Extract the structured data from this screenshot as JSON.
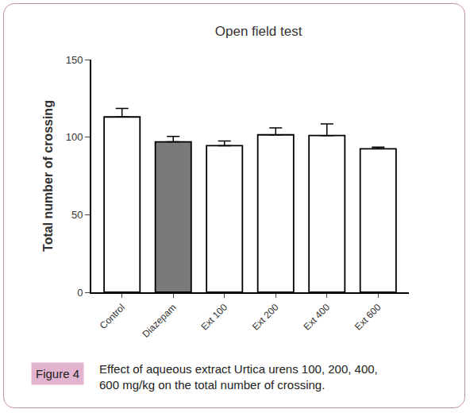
{
  "chart_data": {
    "type": "bar",
    "title": "Open field test",
    "y_label": "Total number of crossing",
    "categories": [
      "Control",
      "Diazepam",
      "Ext 100",
      "Ext 200",
      "Ext 400",
      "Ext 600"
    ],
    "values": [
      113,
      97,
      94.5,
      101.5,
      101,
      92.5
    ],
    "error": [
      5.5,
      3.5,
      3,
      4.5,
      7.5,
      1
    ],
    "colors": [
      "#ffffff",
      "#7a7a7a",
      "#ffffff",
      "#ffffff",
      "#ffffff",
      "#ffffff"
    ],
    "ylim": [
      0,
      150
    ],
    "yticks": [
      0,
      50,
      100,
      150
    ],
    "grid": false,
    "annotations": [
      {
        "text": "Figure 4"
      },
      {
        "text": "Effect of aqueous extract Urtica urens 100, 200, 400,\n600 mg/kg on the total number of crossing."
      }
    ]
  }
}
